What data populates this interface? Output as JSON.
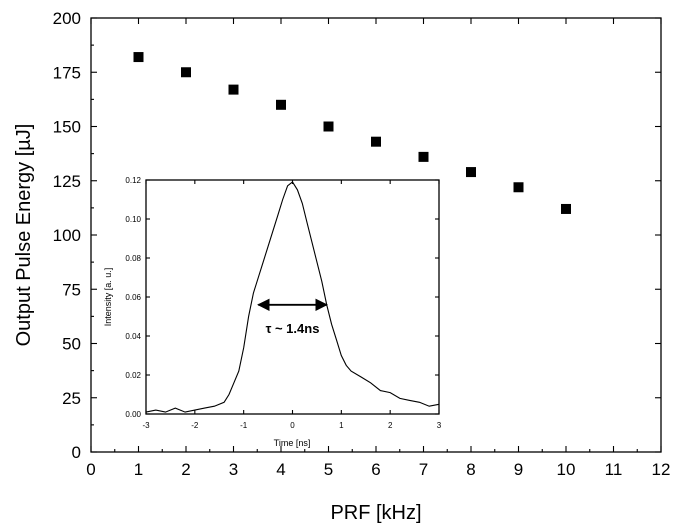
{
  "chart_data": [
    {
      "type": "scatter",
      "xlabel": "PRF [kHz]",
      "ylabel": "Output Pulse Energy [µJ]",
      "xlim": [
        0,
        12
      ],
      "ylim": [
        0,
        200
      ],
      "xticks": [
        0,
        1,
        2,
        3,
        4,
        5,
        6,
        7,
        8,
        9,
        10,
        11,
        12
      ],
      "yticks": [
        0,
        25,
        50,
        75,
        100,
        125,
        150,
        175,
        200
      ],
      "marker": "filled-square",
      "color": "#000000",
      "x": [
        1,
        2,
        3,
        4,
        5,
        6,
        7,
        8,
        9,
        10
      ],
      "y": [
        182,
        175,
        167,
        160,
        150,
        143,
        136,
        129,
        122,
        112
      ]
    },
    {
      "type": "line",
      "placement": "inset",
      "xlabel": "Time [ns]",
      "ylabel": "Intensity [a. u.]",
      "xlim": [
        -3,
        3
      ],
      "ylim": [
        0,
        0.12
      ],
      "xticks": [
        -3,
        -2,
        -1,
        0,
        1,
        2,
        3
      ],
      "yticks": [
        "0.00",
        "0.02",
        "0.04",
        "0.06",
        "0.08",
        "0.10",
        "0.12"
      ],
      "color": "#000000",
      "x": [
        -3.0,
        -2.8,
        -2.6,
        -2.4,
        -2.2,
        -2.0,
        -1.8,
        -1.6,
        -1.4,
        -1.3,
        -1.2,
        -1.1,
        -1.0,
        -0.9,
        -0.8,
        -0.7,
        -0.6,
        -0.5,
        -0.4,
        -0.3,
        -0.2,
        -0.1,
        0.0,
        0.1,
        0.2,
        0.3,
        0.4,
        0.5,
        0.6,
        0.7,
        0.8,
        0.9,
        1.0,
        1.1,
        1.2,
        1.4,
        1.6,
        1.8,
        2.0,
        2.2,
        2.4,
        2.6,
        2.8,
        3.0
      ],
      "y": [
        0.001,
        0.002,
        0.001,
        0.003,
        0.001,
        0.002,
        0.003,
        0.004,
        0.006,
        0.01,
        0.016,
        0.022,
        0.034,
        0.05,
        0.062,
        0.07,
        0.078,
        0.086,
        0.094,
        0.102,
        0.11,
        0.117,
        0.119,
        0.115,
        0.108,
        0.098,
        0.088,
        0.078,
        0.068,
        0.056,
        0.046,
        0.038,
        0.03,
        0.025,
        0.022,
        0.019,
        0.016,
        0.012,
        0.011,
        0.008,
        0.007,
        0.006,
        0.004,
        0.005
      ],
      "annotation": {
        "label": "τ ~ 1.4ns",
        "arrow_from": -0.7,
        "arrow_to": 0.7,
        "arrow_y": 0.056
      }
    }
  ]
}
